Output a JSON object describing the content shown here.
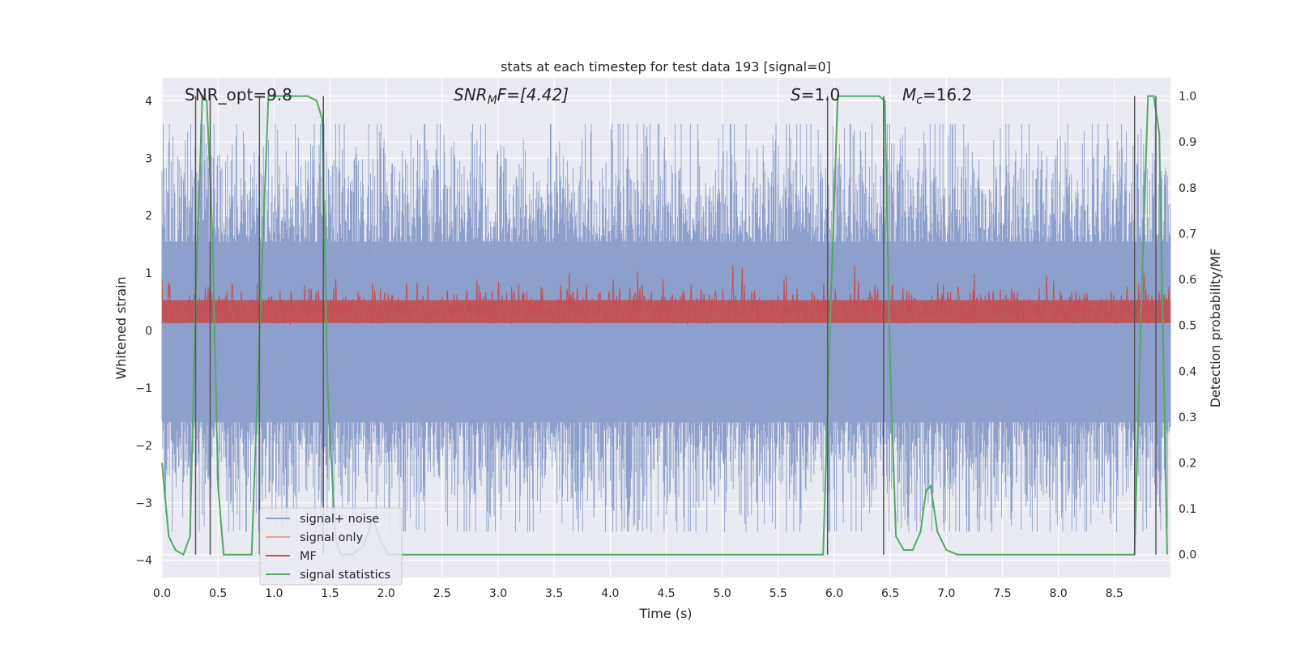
{
  "chart_data": {
    "type": "line",
    "title": "stats at each timestep for test data 193 [signal=0]",
    "xlabel": "Time (s)",
    "ylabel": "Whitened strain",
    "ylabel_right": "Detection probability/MF",
    "xlim": [
      0.0,
      9.0
    ],
    "ylim": [
      -4.3,
      4.4
    ],
    "ylim_right": [
      -0.05,
      1.04
    ],
    "x_ticks": [
      0.0,
      0.5,
      1.0,
      1.5,
      2.0,
      2.5,
      3.0,
      3.5,
      4.0,
      4.5,
      5.0,
      5.5,
      6.0,
      6.5,
      7.0,
      7.5,
      8.0,
      8.5
    ],
    "x_tick_labels": [
      "0.0",
      "0.5",
      "1.0",
      "1.5",
      "2.0",
      "2.5",
      "3.0",
      "3.5",
      "4.0",
      "4.5",
      "5.0",
      "5.5",
      "6.0",
      "6.5",
      "7.0",
      "7.5",
      "8.0",
      "8.5"
    ],
    "y_ticks": [
      -4,
      -3,
      -2,
      -1,
      0,
      1,
      2,
      3,
      4
    ],
    "y_tick_labels": [
      "−4",
      "−3",
      "−2",
      "−1",
      "0",
      "1",
      "2",
      "3",
      "4"
    ],
    "y_ticks_right": [
      0.0,
      0.1,
      0.2,
      0.3,
      0.4,
      0.5,
      0.6,
      0.7,
      0.8,
      0.9,
      1.0
    ],
    "y_tick_labels_right": [
      "0.0",
      "0.1",
      "0.2",
      "0.3",
      "0.4",
      "0.5",
      "0.6",
      "0.7",
      "0.8",
      "0.9",
      "1.0"
    ],
    "grid": true,
    "legend_position": "lower-left",
    "annotations": {
      "snr_opt": "SNR_opt=9.8",
      "snr_mf_sym": "SNR",
      "snr_mf_sub": "M",
      "snr_mf_rest": "F=[4.42]",
      "s_sym": "S",
      "s_rest": "=1.0",
      "mc_sym": "M",
      "mc_sub": "c",
      "mc_rest": "=16.2"
    },
    "series": [
      {
        "name": "signal+ noise",
        "color": "#8da0cb",
        "axis": "left",
        "style": "dense-noise",
        "amplitude_envelope": [
          -3.5,
          3.6
        ]
      },
      {
        "name": "signal only",
        "color": "#e8a48c",
        "axis": "left",
        "style": "line",
        "values": []
      },
      {
        "name": "MF",
        "color": "#c44e52",
        "axis": "right",
        "style": "dense-noise",
        "range": [
          0.5,
          0.62
        ]
      },
      {
        "name": "signal statistics",
        "color": "#55a868",
        "axis": "right",
        "style": "line",
        "x": [
          0.0,
          0.06,
          0.12,
          0.19,
          0.25,
          0.3,
          0.36,
          0.4,
          0.45,
          0.5,
          0.55,
          0.6,
          0.8,
          0.88,
          0.95,
          1.0,
          1.3,
          1.38,
          1.43,
          1.48,
          1.55,
          1.6,
          1.7,
          1.8,
          1.88,
          1.95,
          2.02,
          2.1,
          5.9,
          5.97,
          6.03,
          6.4,
          6.45,
          6.5,
          6.55,
          6.62,
          6.7,
          6.77,
          6.82,
          6.86,
          6.92,
          7.0,
          7.1,
          8.68,
          8.74,
          8.8,
          8.85,
          8.9,
          8.97
        ],
        "values": [
          0.2,
          0.04,
          0.01,
          0.0,
          0.04,
          0.55,
          1.0,
          0.99,
          0.7,
          0.15,
          0.0,
          0.0,
          0.0,
          0.55,
          1.0,
          1.0,
          1.0,
          0.99,
          0.95,
          0.35,
          0.03,
          0.0,
          0.0,
          0.02,
          0.08,
          0.03,
          0.0,
          0.0,
          0.0,
          0.55,
          1.0,
          1.0,
          0.99,
          0.4,
          0.04,
          0.01,
          0.01,
          0.05,
          0.14,
          0.15,
          0.05,
          0.01,
          0.0,
          0.0,
          0.55,
          1.0,
          1.0,
          0.92,
          0.0
        ]
      }
    ],
    "vertical_markers": [
      {
        "color": "#555555",
        "x": [
          0.3,
          0.43,
          0.87,
          1.44,
          5.94,
          6.44,
          8.68,
          8.87
        ]
      }
    ]
  }
}
